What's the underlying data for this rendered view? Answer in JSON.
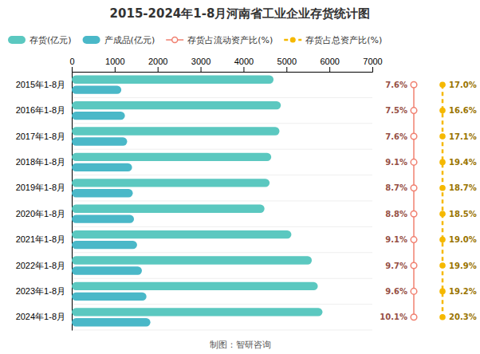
{
  "chart_data": {
    "type": "bar",
    "orientation": "horizontal",
    "title": "2015-2024年1-8月河南省工业企业存货统计图",
    "categories": [
      "2015年1-8月",
      "2016年1-8月",
      "2017年1-8月",
      "2018年1-8月",
      "2019年1-8月",
      "2020年1-8月",
      "2021年1-8月",
      "2022年1-8月",
      "2023年1-8月",
      "2024年1-8月"
    ],
    "series": [
      {
        "name": "存货(亿元)",
        "type": "bar",
        "color": "#5bc8c0",
        "values": [
          4699,
          4869,
          4836,
          4645,
          4607,
          4488,
          5114,
          5590,
          5729,
          5839
        ]
      },
      {
        "name": "产成品(亿元)",
        "type": "bar",
        "color": "#4ab8c8",
        "values": [
          1154,
          1238,
          1290,
          1404,
          1421,
          1449,
          1521,
          1633,
          1740,
          1831
        ]
      },
      {
        "name": "存货占流动资产比(%)",
        "type": "text",
        "color": "#f08070",
        "marker": "open-circle",
        "line_style": "solid",
        "data_labels": true,
        "values": [
          7.6,
          7.5,
          7.6,
          9.1,
          8.7,
          8.8,
          9.1,
          9.7,
          9.6,
          10.1
        ],
        "value_labels": [
          "7.6%",
          "7.5%",
          "7.6%",
          "9.1%",
          "8.7%",
          "8.8%",
          "9.1%",
          "9.7%",
          "9.6%",
          "10.1%"
        ]
      },
      {
        "name": "存货占总资产比(%)",
        "type": "text",
        "color": "#f5b800",
        "marker": "circle",
        "line_style": "dashed",
        "data_labels": true,
        "values": [
          17.0,
          16.6,
          17.1,
          19.4,
          18.7,
          18.5,
          19.0,
          19.9,
          19.2,
          20.3
        ],
        "value_labels": [
          "17.0%",
          "16.6%",
          "17.1%",
          "19.4%",
          "18.7%",
          "18.5%",
          "19.0%",
          "19.9%",
          "19.2%",
          "20.3%"
        ]
      }
    ],
    "xlim": [
      0,
      7000
    ],
    "xticks": [
      0,
      1000,
      2000,
      3000,
      4000,
      5000,
      6000,
      7000
    ],
    "grid": false,
    "legend": "top-left",
    "annotations": [
      "制图：智研咨询"
    ]
  }
}
